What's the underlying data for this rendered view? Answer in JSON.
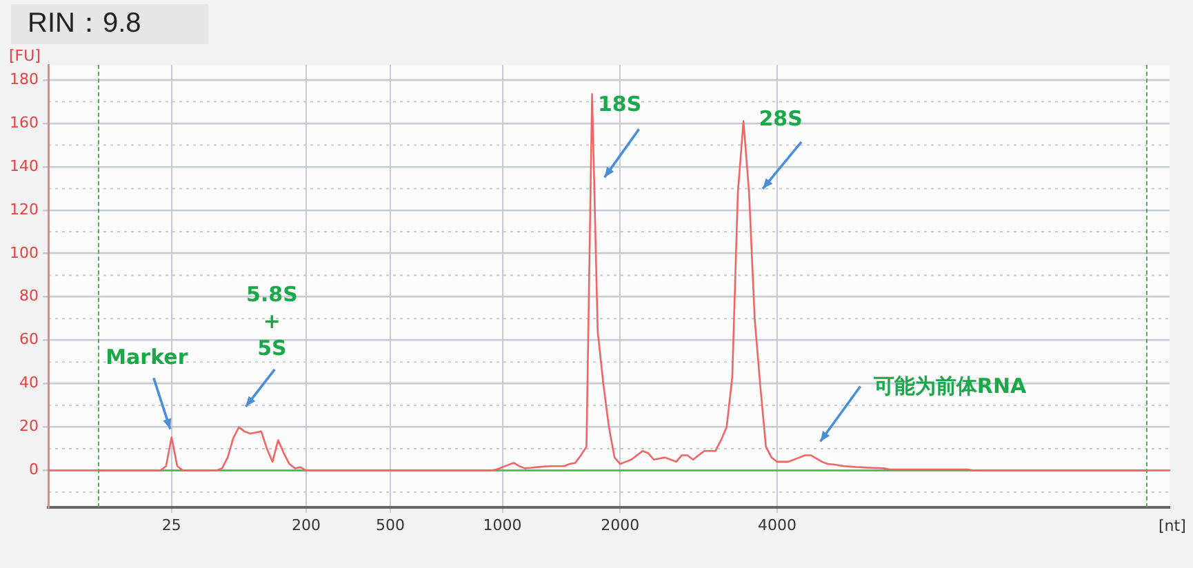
{
  "chart_data": {
    "type": "line",
    "title": "RIN：9.8",
    "xlabel": "[nt]",
    "ylabel": "[FU]",
    "categories": [
      null,
      null,
      null,
      null,
      null,
      null,
      null,
      null,
      null,
      null,
      null,
      null,
      null,
      null,
      null,
      null,
      null,
      null,
      null,
      null,
      null,
      null,
      "25",
      null,
      null,
      null,
      null,
      null,
      null,
      null,
      null,
      null,
      null,
      null,
      null,
      null,
      null,
      null,
      null,
      null,
      null,
      null,
      null,
      null,
      null,
      null,
      "200",
      null,
      null,
      null,
      null,
      null,
      null,
      null,
      null,
      null,
      null,
      null,
      null,
      null,
      null,
      "500",
      null,
      null,
      null,
      null,
      null,
      null,
      null,
      null,
      null,
      null,
      null,
      null,
      null,
      null,
      null,
      null,
      null,
      null,
      null,
      "1000",
      null,
      null,
      null,
      null,
      null,
      null,
      null,
      null,
      null,
      null,
      null,
      null,
      null,
      null,
      null,
      null,
      null,
      null,
      null,
      null,
      "2000",
      null,
      null,
      null,
      null,
      null,
      null,
      null,
      null,
      null,
      null,
      null,
      null,
      null,
      null,
      null,
      null,
      null,
      null,
      null,
      null,
      null,
      null,
      null,
      null,
      null,
      null,
      null,
      "4000",
      null,
      null,
      null,
      null,
      null,
      null,
      null,
      null,
      null,
      null,
      null,
      null,
      null,
      null,
      null,
      null,
      null,
      null,
      null,
      null,
      null,
      null,
      null,
      null,
      null,
      null,
      null,
      null,
      null,
      null,
      null,
      null,
      null,
      null,
      null,
      null,
      null,
      null,
      null,
      null,
      null,
      null,
      null,
      null,
      null,
      null,
      null,
      null,
      null,
      null,
      null,
      null,
      null,
      null,
      null,
      null,
      null,
      null,
      null,
      null,
      null,
      null,
      null,
      null,
      null,
      null,
      null,
      null,
      null,
      null
    ],
    "ylim": [
      -17,
      187
    ],
    "yticks": [
      0,
      20,
      40,
      60,
      80,
      100,
      120,
      140,
      160,
      180
    ],
    "grid": true,
    "legend": false,
    "marker": "none",
    "line_style": "solid",
    "series": [
      {
        "color": "#4caf50",
        "values": [
          null,
          null,
          null,
          null,
          null,
          null,
          null,
          null,
          null,
          0,
          0,
          0,
          0,
          0,
          0,
          0,
          0,
          0,
          0,
          0,
          0,
          0,
          0,
          0,
          0,
          0,
          0,
          0,
          0,
          0,
          0,
          0,
          0,
          0,
          0,
          0,
          0,
          0,
          0,
          0,
          0,
          0,
          0,
          0,
          0,
          0,
          0,
          0,
          0,
          0,
          0,
          0,
          0,
          0,
          0,
          0,
          0,
          0,
          0,
          0,
          0,
          0,
          0,
          0,
          0,
          0,
          0,
          0,
          0,
          0,
          0,
          0,
          0,
          0,
          0,
          0,
          0,
          0,
          0,
          0,
          0,
          0,
          0,
          0,
          0,
          0,
          0,
          0,
          0,
          0,
          0,
          0,
          0,
          0,
          0,
          0,
          0,
          0,
          0,
          0,
          0,
          0,
          0,
          0,
          0,
          0,
          0,
          0,
          0,
          0,
          0,
          0,
          0,
          0,
          0,
          0,
          0,
          0,
          0,
          0,
          0,
          0,
          0,
          0,
          0,
          0,
          0,
          0,
          0,
          0,
          0,
          0,
          0,
          0,
          0,
          0,
          0,
          0,
          0,
          0,
          0,
          0,
          0,
          0,
          0,
          0,
          0,
          0,
          0,
          0,
          0,
          0,
          0,
          0,
          0,
          0,
          0,
          0,
          0,
          0,
          0,
          0,
          0,
          0,
          0,
          0,
          0,
          0,
          0,
          0,
          0,
          0,
          0,
          0,
          0,
          0,
          0,
          0,
          0,
          0,
          0,
          0,
          0,
          0,
          0,
          0,
          0,
          0,
          0,
          0,
          0,
          0,
          0,
          0,
          0,
          0,
          0,
          null,
          null,
          null,
          null
        ]
      },
      {
        "color": "#f06464",
        "values": [
          0,
          0,
          0,
          0,
          0,
          0,
          0,
          0,
          0,
          0,
          0,
          0,
          0,
          0,
          0,
          0,
          0,
          0,
          0,
          0,
          0,
          2,
          15.3,
          2,
          0,
          0,
          0,
          0,
          0,
          0,
          0,
          1,
          6,
          15,
          19.9,
          18,
          17,
          17.5,
          18,
          10,
          4,
          14,
          8,
          3,
          1,
          1.5,
          0,
          0,
          0,
          0,
          0,
          0,
          0,
          0,
          0,
          0,
          0,
          0,
          0,
          0,
          0,
          0,
          0,
          0,
          0,
          0,
          0,
          0,
          0,
          0,
          0,
          0,
          0,
          0,
          0,
          0,
          0,
          0,
          0,
          0,
          0.5,
          1.5,
          2.5,
          3.5,
          2,
          1,
          1.2,
          1.5,
          1.7,
          1.9,
          2,
          2,
          2,
          3,
          3.5,
          7,
          11,
          173.5,
          64,
          40,
          20,
          6,
          3,
          4,
          5,
          7,
          9,
          8,
          5,
          5.5,
          6,
          5,
          4,
          7,
          7,
          5,
          7,
          9,
          9,
          9,
          14,
          20,
          43,
          128,
          161,
          128,
          70,
          39,
          11,
          6,
          4,
          4,
          4,
          5,
          6,
          7,
          7,
          5.5,
          4,
          3,
          2.8,
          2.4,
          2,
          1.8,
          1.6,
          1.5,
          1.3,
          1.2,
          1.1,
          1,
          0.5,
          0.5,
          0.5,
          0.5,
          0.5,
          0.5,
          0.5,
          0.5,
          0.5,
          0.5,
          0.5,
          0.5,
          0.5,
          0.5,
          0.5,
          0,
          0,
          0,
          0,
          0,
          0,
          0,
          0,
          0,
          0,
          0,
          0,
          0,
          0,
          0,
          0,
          0,
          0,
          0,
          0,
          0,
          0,
          0,
          0,
          0,
          0,
          0,
          0,
          0,
          0,
          0,
          0,
          0,
          0,
          0,
          0
        ]
      }
    ],
    "annotations": [
      {
        "text": "Marker",
        "x": "25",
        "y": 15.3
      },
      "5.8S\n+\n5S",
      "18S",
      "28S",
      "可能为前体RNA"
    ]
  }
}
